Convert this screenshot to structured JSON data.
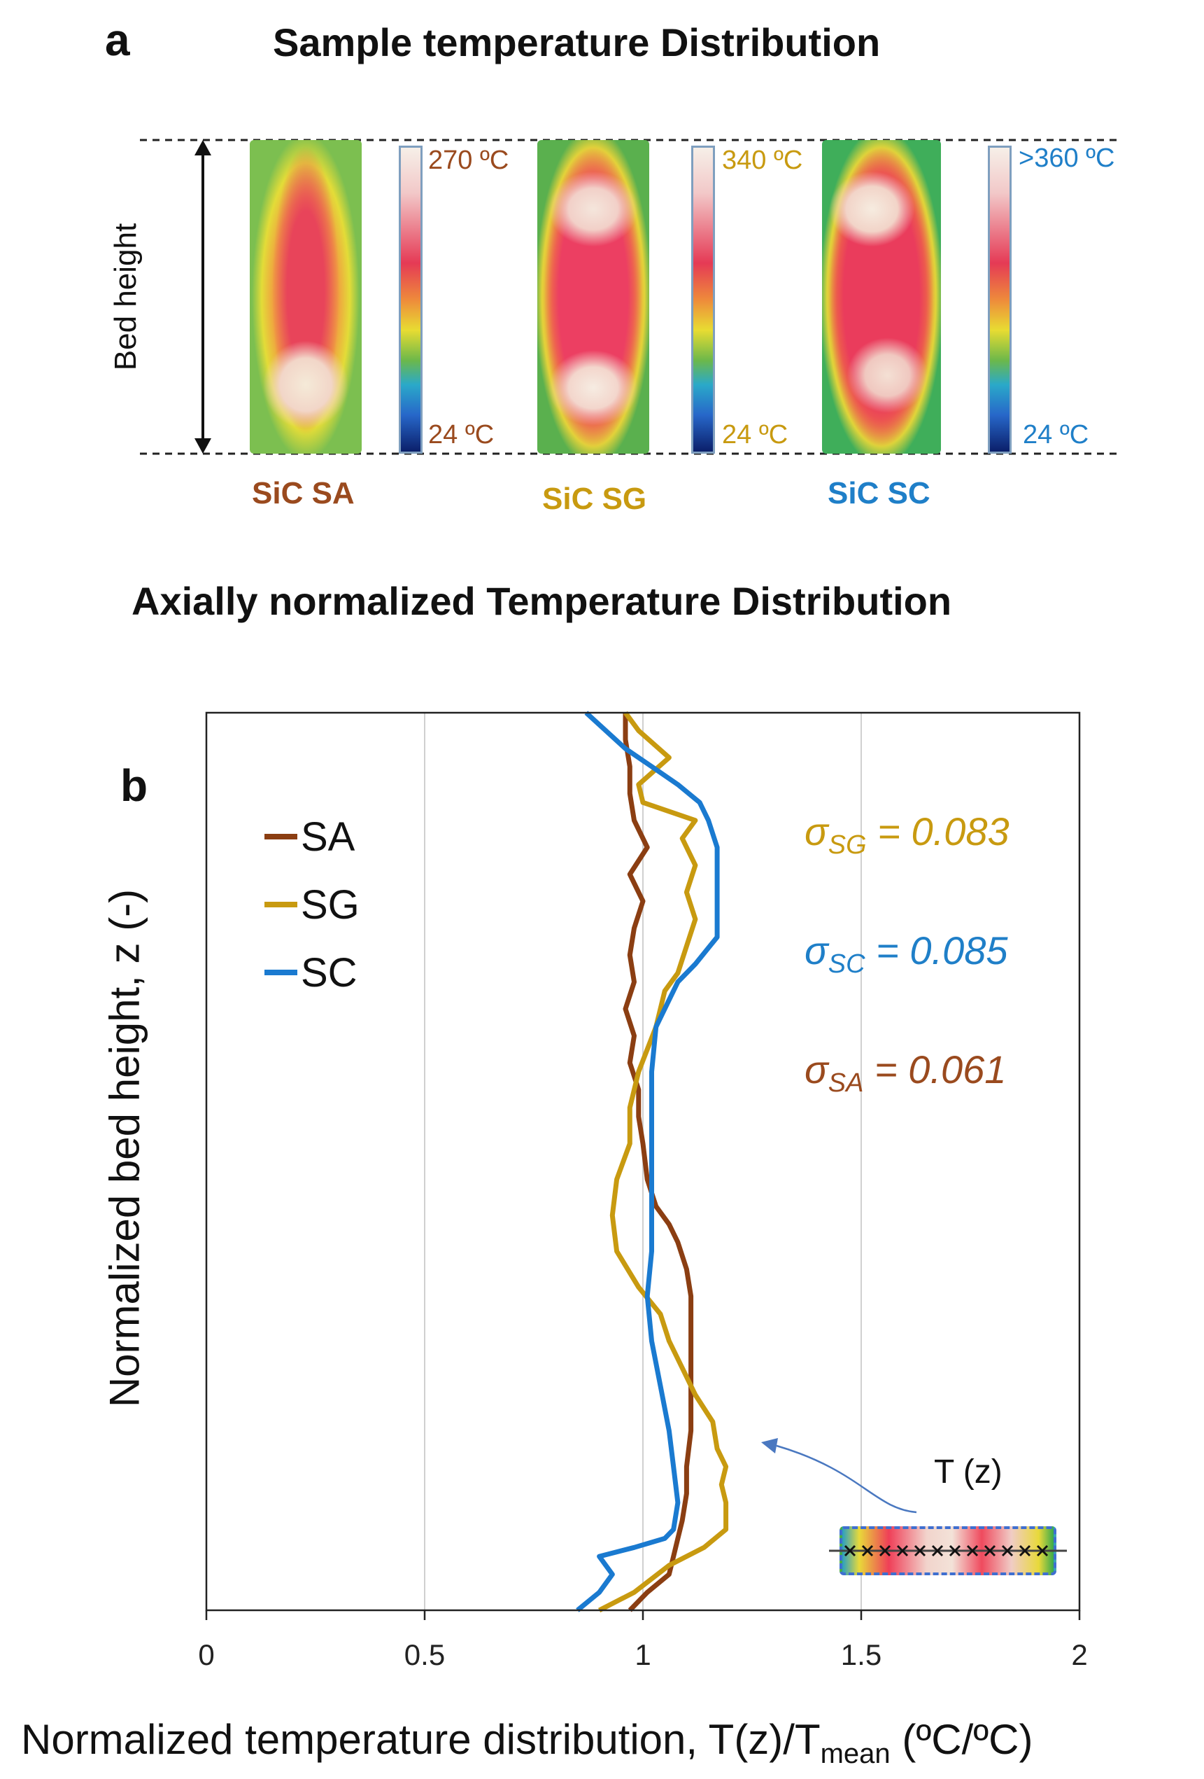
{
  "panel_a": {
    "letter": "a",
    "title": "Sample temperature Distribution",
    "bed_height_label": "Bed height",
    "samples": [
      {
        "name": "SiC SA",
        "max_label": "270 ºC",
        "min_label": "24 ºC",
        "color": "#9a4a1e"
      },
      {
        "name": "SiC SG",
        "max_label": "340 ºC",
        "min_label": "24 ºC",
        "color": "#c89a10"
      },
      {
        "name": "SiC SC",
        "max_label": ">360 ºC",
        "min_label": "24 ºC",
        "color": "#1f7fc8"
      }
    ]
  },
  "panel_b": {
    "letter": "b",
    "title": "Axially normalized Temperature Distribution",
    "inset_label": "T (z)",
    "sigma": [
      {
        "symbol": "σ",
        "sub": "SG",
        "value": "= 0.083",
        "color": "#c89a10"
      },
      {
        "symbol": "σ",
        "sub": "SC",
        "value": "= 0.085",
        "color": "#1f7fc8"
      },
      {
        "symbol": "σ",
        "sub": "SA",
        "value": "= 0.061",
        "color": "#9a4a1e"
      }
    ]
  },
  "chart_data": {
    "type": "line",
    "title": "Axially normalized Temperature Distribution",
    "xlabel": "Normalized temperature distribution, T(z)/T",
    "xlabel_sub": "mean",
    "xlabel_units": " (ºC/ºC)",
    "ylabel": "Normalized bed height, z (-)",
    "xlim": [
      0,
      2
    ],
    "ylim": [
      0,
      1
    ],
    "xticks": [
      0,
      0.5,
      1,
      1.5,
      2
    ],
    "xtick_labels": [
      "0",
      "0.5",
      "1",
      "1.5",
      "2"
    ],
    "grid_x": true,
    "legend_position": "top-left",
    "series": [
      {
        "name": "SA",
        "color": "#8b3e12",
        "z": [
          0.0,
          0.02,
          0.04,
          0.06,
          0.08,
          0.1,
          0.13,
          0.16,
          0.2,
          0.25,
          0.3,
          0.35,
          0.38,
          0.41,
          0.43,
          0.45,
          0.48,
          0.52,
          0.55,
          0.58,
          0.61,
          0.64,
          0.67,
          0.7,
          0.73,
          0.76,
          0.79,
          0.82,
          0.85,
          0.88,
          0.91,
          0.94,
          0.97,
          1.0
        ],
        "x": [
          0.97,
          1.01,
          1.06,
          1.07,
          1.08,
          1.09,
          1.1,
          1.1,
          1.11,
          1.11,
          1.11,
          1.11,
          1.1,
          1.08,
          1.06,
          1.03,
          1.01,
          1.0,
          0.99,
          0.99,
          0.97,
          0.98,
          0.96,
          0.98,
          0.97,
          0.98,
          1.0,
          0.97,
          1.01,
          0.98,
          0.97,
          0.97,
          0.96,
          0.96
        ]
      },
      {
        "name": "SG",
        "color": "#c89a10",
        "z": [
          0.0,
          0.02,
          0.05,
          0.07,
          0.09,
          0.12,
          0.14,
          0.16,
          0.18,
          0.21,
          0.24,
          0.27,
          0.3,
          0.33,
          0.36,
          0.4,
          0.44,
          0.48,
          0.52,
          0.56,
          0.6,
          0.65,
          0.69,
          0.71,
          0.74,
          0.77,
          0.8,
          0.83,
          0.86,
          0.88,
          0.9,
          0.92,
          0.95,
          0.98,
          1.0
        ],
        "x": [
          0.9,
          0.98,
          1.06,
          1.14,
          1.19,
          1.19,
          1.18,
          1.19,
          1.17,
          1.16,
          1.12,
          1.09,
          1.06,
          1.04,
          0.99,
          0.94,
          0.93,
          0.94,
          0.97,
          0.97,
          0.99,
          1.03,
          1.05,
          1.08,
          1.1,
          1.12,
          1.1,
          1.12,
          1.09,
          1.12,
          1.0,
          0.99,
          1.06,
          0.99,
          0.96
        ]
      },
      {
        "name": "SC",
        "color": "#1a7ad0",
        "z": [
          0.0,
          0.02,
          0.04,
          0.06,
          0.07,
          0.08,
          0.09,
          0.12,
          0.16,
          0.2,
          0.25,
          0.3,
          0.35,
          0.4,
          0.45,
          0.5,
          0.55,
          0.6,
          0.65,
          0.68,
          0.7,
          0.72,
          0.75,
          0.8,
          0.85,
          0.88,
          0.9,
          0.92,
          0.94,
          0.96,
          1.0
        ],
        "x": [
          0.85,
          0.9,
          0.93,
          0.9,
          0.98,
          1.05,
          1.07,
          1.08,
          1.07,
          1.06,
          1.04,
          1.02,
          1.01,
          1.02,
          1.02,
          1.02,
          1.02,
          1.02,
          1.03,
          1.06,
          1.08,
          1.12,
          1.17,
          1.17,
          1.17,
          1.15,
          1.13,
          1.08,
          1.02,
          0.96,
          0.87
        ]
      }
    ]
  }
}
